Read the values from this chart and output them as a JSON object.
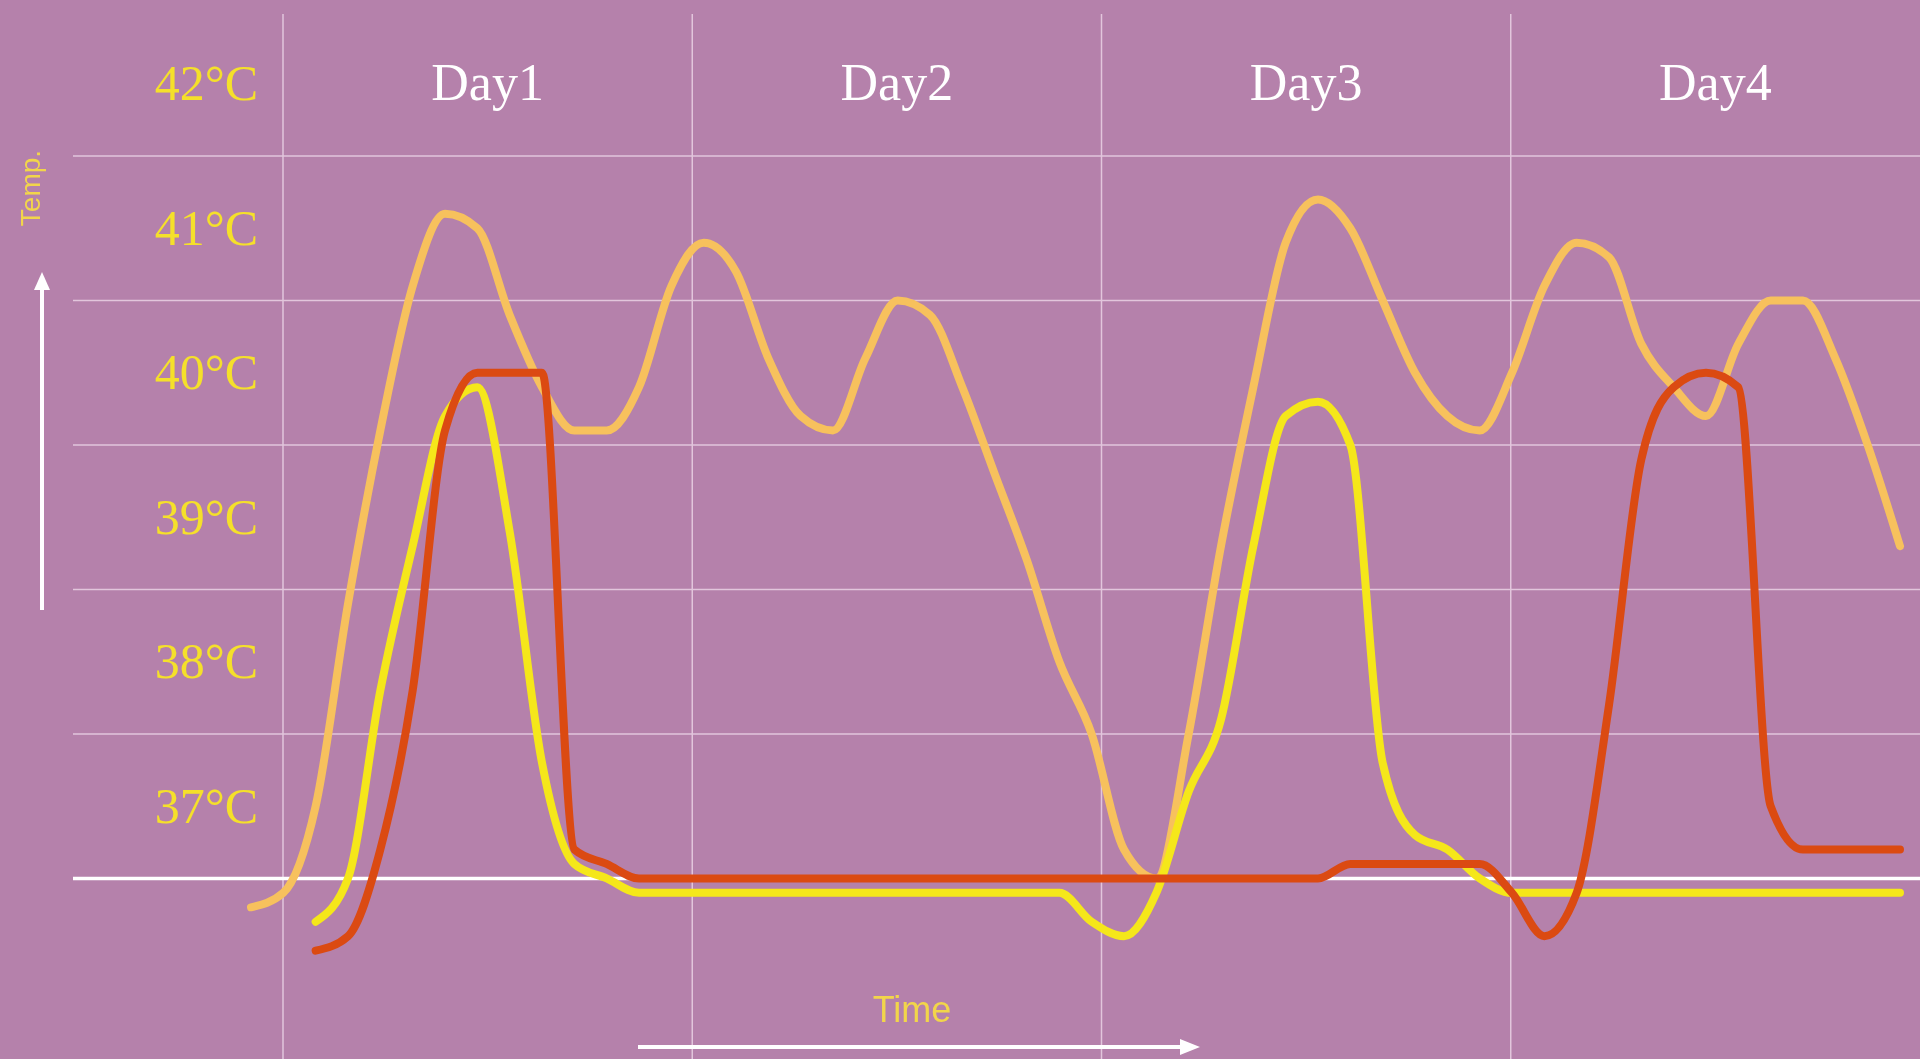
{
  "chart_data": {
    "type": "line",
    "xlabel": "Time",
    "ylabel": "Temp.",
    "annotations": [
      "Day1",
      "Day2",
      "Day3",
      "Day4"
    ],
    "categories": [
      null,
      null,
      null,
      null,
      null,
      null,
      null,
      null,
      null,
      null,
      null,
      null,
      null,
      null,
      null,
      null,
      null,
      null,
      null,
      null,
      null,
      null,
      null,
      null,
      null,
      null,
      null,
      null,
      null,
      null,
      null,
      null,
      null,
      null,
      null,
      null,
      null,
      null,
      null,
      null,
      null,
      null,
      null,
      null,
      null,
      null,
      null,
      null,
      null,
      null,
      null,
      null
    ],
    "ylim": [
      35.25,
      42.58
    ],
    "yticks": [
      {
        "value": 37,
        "label": "37°C"
      },
      {
        "value": 38,
        "label": "38°C"
      },
      {
        "value": 39,
        "label": "39°C"
      },
      {
        "value": 40,
        "label": "40°C"
      },
      {
        "value": 41,
        "label": "41°C"
      },
      {
        "value": 42,
        "label": "42°C"
      }
    ],
    "tick_labels": "y",
    "grid": false,
    "marker": "none",
    "line_style": "solid",
    "ref_lines": [
      {
        "axis": "y",
        "value": 36.5,
        "color": "#ffffff"
      },
      {
        "axis": "y",
        "value": 37.5,
        "color": "#e2c6dc"
      },
      {
        "axis": "y",
        "value": 38.5,
        "color": "#e2c6dc"
      },
      {
        "axis": "y",
        "value": 39.5,
        "color": "#e2c6dc"
      },
      {
        "axis": "y",
        "value": 40.5,
        "color": "#e2c6dc"
      },
      {
        "axis": "y",
        "value": 41.5,
        "color": "#e2c6dc"
      }
    ],
    "series": [
      {
        "color": "#f7c15d",
        "values": [
          36.3,
          36.4,
          37.0,
          38.4,
          39.6,
          40.6,
          41.1,
          41.0,
          40.4,
          39.9,
          39.6,
          39.6,
          39.9,
          40.6,
          40.9,
          40.7,
          40.1,
          39.7,
          39.6,
          40.1,
          40.5,
          40.4,
          39.9,
          39.3,
          38.7,
          38.0,
          37.5,
          36.7,
          36.5,
          37.5,
          38.8,
          39.9,
          40.9,
          41.2,
          41.0,
          40.5,
          40.0,
          39.7,
          39.6,
          40.0,
          40.6,
          40.9,
          40.8,
          40.2,
          39.9,
          39.7,
          40.2,
          40.5,
          40.5,
          40.1,
          39.5,
          38.8
        ]
      },
      {
        "color": "#f5e71a",
        "values": [
          null,
          null,
          36.2,
          36.5,
          37.8,
          38.8,
          39.7,
          39.9,
          38.9,
          37.3,
          36.6,
          36.5,
          36.4,
          36.4,
          36.4,
          36.4,
          36.4,
          36.4,
          36.4,
          36.4,
          36.4,
          36.4,
          36.4,
          36.4,
          36.4,
          36.4,
          36.2,
          36.1,
          36.4,
          37.1,
          37.6,
          38.8,
          39.7,
          39.8,
          39.5,
          37.3,
          36.8,
          36.7,
          36.5,
          36.4,
          36.4,
          36.4,
          36.4,
          36.4,
          36.4,
          36.4,
          36.4,
          36.4,
          36.4,
          36.4,
          36.4,
          36.4
        ]
      },
      {
        "color": "#db4a12",
        "values": [
          null,
          null,
          36.0,
          36.1,
          36.7,
          37.8,
          39.6,
          40.0,
          40.0,
          40.0,
          36.7,
          36.6,
          36.5,
          36.5,
          36.5,
          36.5,
          36.5,
          36.5,
          36.5,
          36.5,
          36.5,
          36.5,
          36.5,
          36.5,
          36.5,
          36.5,
          36.5,
          36.5,
          36.5,
          36.5,
          36.5,
          36.5,
          36.5,
          36.5,
          36.6,
          36.6,
          36.6,
          36.6,
          36.6,
          36.4,
          36.1,
          36.4,
          37.7,
          39.4,
          39.9,
          40.0,
          39.9,
          37.0,
          36.7,
          36.7,
          36.7,
          36.7
        ]
      }
    ]
  }
}
